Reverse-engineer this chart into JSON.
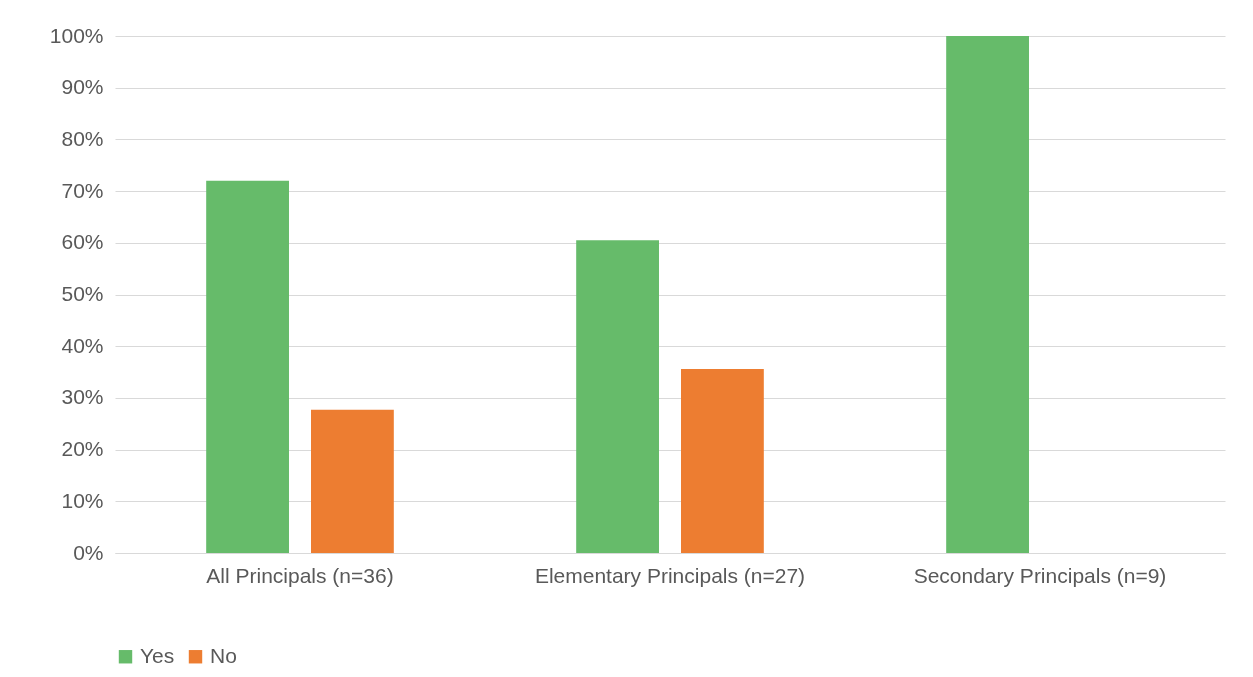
{
  "chart_data": {
    "type": "bar",
    "categories": [
      "All Principals (n=36)",
      "Elementary Principals (n=27)",
      "Secondary Principals (n=9)"
    ],
    "series": [
      {
        "name": "Yes",
        "color": "#66bb6a",
        "values": [
          72,
          60.5,
          100
        ]
      },
      {
        "name": "No",
        "color": "#ed7d31",
        "values": [
          27.7,
          35.6,
          0
        ]
      }
    ],
    "ylim": [
      0,
      100
    ],
    "yticks": [
      {
        "value": 0,
        "label": "0%"
      },
      {
        "value": 10,
        "label": "10%"
      },
      {
        "value": 20,
        "label": "20%"
      },
      {
        "value": 30,
        "label": "30%"
      },
      {
        "value": 40,
        "label": "40%"
      },
      {
        "value": 50,
        "label": "50%"
      },
      {
        "value": 60,
        "label": "60%"
      },
      {
        "value": 70,
        "label": "70%"
      },
      {
        "value": 80,
        "label": "80%"
      },
      {
        "value": 90,
        "label": "90%"
      },
      {
        "value": 100,
        "label": "100%"
      }
    ],
    "grid": "y",
    "legend": "bottom"
  }
}
